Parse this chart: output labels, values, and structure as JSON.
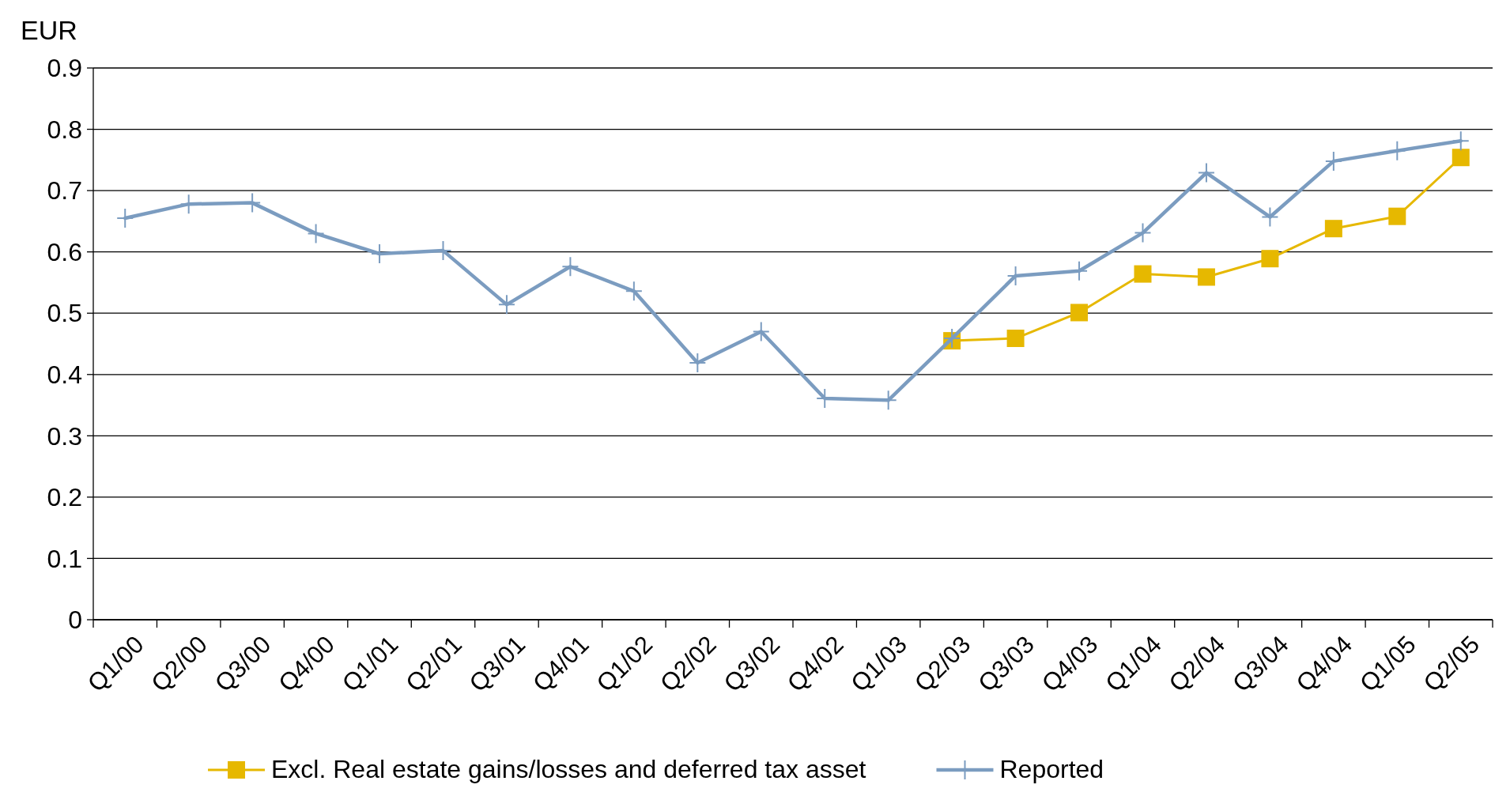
{
  "chart_data": {
    "type": "line",
    "ylabel": "EUR",
    "categories": [
      "Q1/00",
      "Q2/00",
      "Q3/00",
      "Q4/00",
      "Q1/01",
      "Q2/01",
      "Q3/01",
      "Q4/01",
      "Q1/02",
      "Q2/02",
      "Q3/02",
      "Q4/02",
      "Q1/03",
      "Q2/03",
      "Q3/03",
      "Q4/03",
      "Q1/04",
      "Q2/04",
      "Q3/04",
      "Q4/04",
      "Q1/05",
      "Q2/05"
    ],
    "series": [
      {
        "name": "Excl. Real estate gains/losses and deferred tax asset",
        "color": "#e6b800",
        "marker": "square",
        "values": [
          null,
          null,
          null,
          null,
          null,
          null,
          null,
          null,
          null,
          null,
          null,
          null,
          null,
          0.455,
          0.459,
          0.501,
          0.564,
          0.559,
          0.589,
          0.638,
          0.658,
          0.754
        ]
      },
      {
        "name": "Reported",
        "color": "#7b9cc0",
        "marker": "cross",
        "values": [
          0.655,
          0.678,
          0.68,
          0.63,
          0.597,
          0.602,
          0.514,
          0.576,
          0.536,
          0.419,
          0.47,
          0.361,
          0.358,
          0.459,
          0.561,
          0.569,
          0.631,
          0.729,
          0.657,
          0.748,
          0.765,
          0.781
        ]
      }
    ],
    "ylim": [
      0,
      0.9
    ],
    "yticks": [
      0,
      0.1,
      0.2,
      0.3,
      0.4,
      0.5,
      0.6,
      0.7,
      0.8,
      0.9
    ],
    "grid": "y",
    "legend": "bottom",
    "line_style": "solid"
  }
}
